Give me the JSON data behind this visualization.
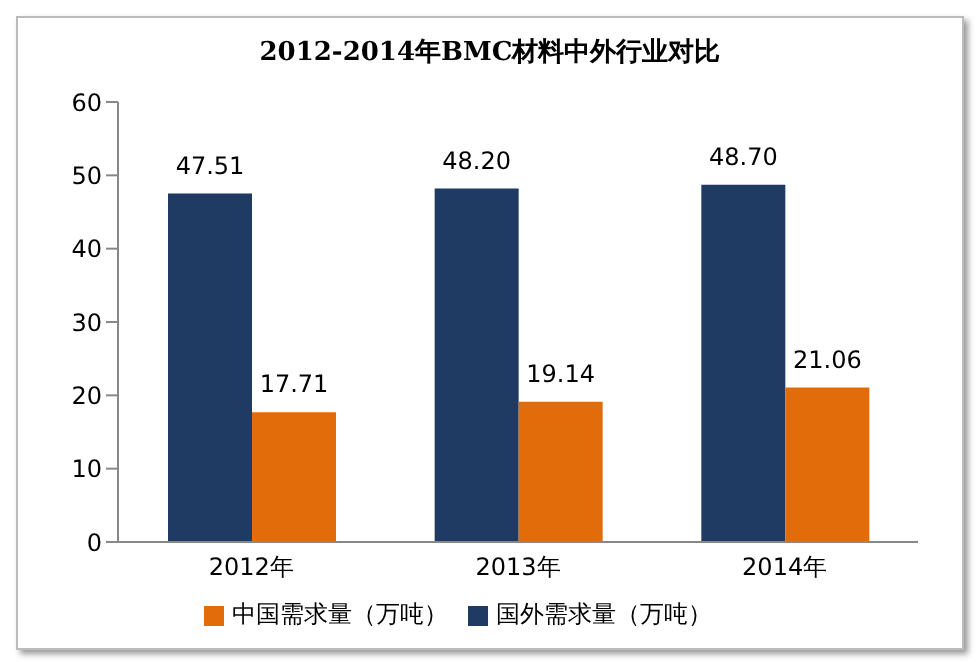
{
  "chart_data": {
    "type": "bar",
    "title": "2012-2014年BMC材料中外行业对比",
    "categories": [
      "2012年",
      "2013年",
      "2014年"
    ],
    "series": [
      {
        "name": "国外需求量（万吨）",
        "color": "#1f3b63",
        "values": [
          47.51,
          48.2,
          48.7
        ],
        "value_labels": [
          "47.51",
          "48.20",
          "48.70"
        ]
      },
      {
        "name": "中国需求量（万吨）",
        "color": "#e36c0a",
        "values": [
          17.71,
          19.14,
          21.06
        ],
        "value_labels": [
          "17.71",
          "19.14",
          "21.06"
        ]
      }
    ],
    "ylim": [
      0,
      60
    ],
    "yticks": [
      0,
      10,
      20,
      30,
      40,
      50,
      60
    ],
    "grid": false,
    "legend": "bottom"
  }
}
